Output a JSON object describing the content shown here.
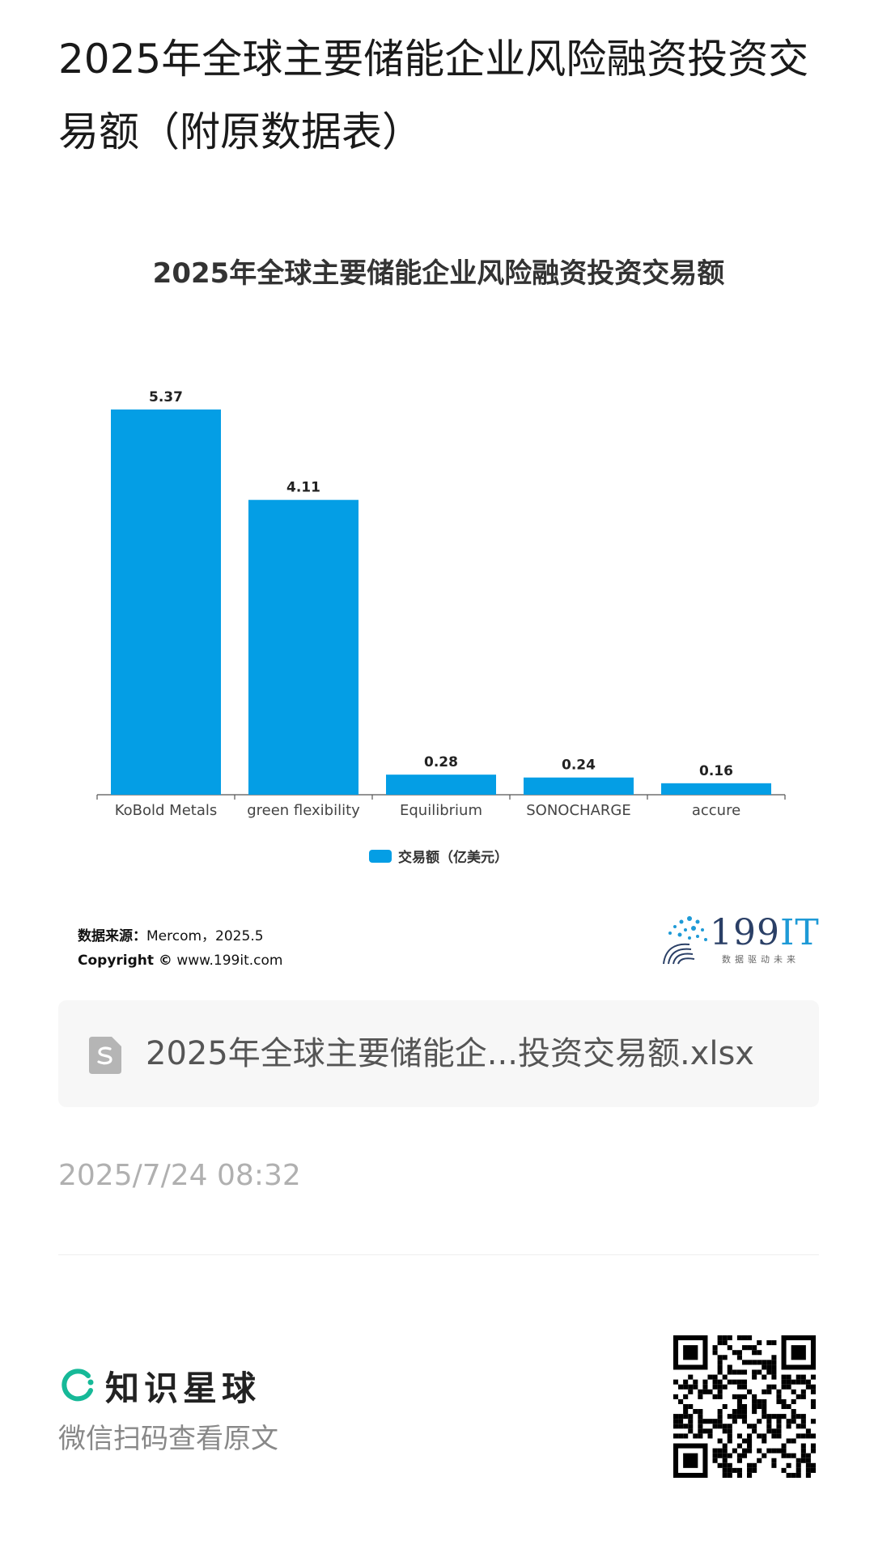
{
  "page": {
    "title": "2025年全球主要储能企业风险融资投资交易额（附原数据表）",
    "timestamp": "2025/7/24 08:32"
  },
  "chart_data": {
    "type": "bar",
    "title": "2025年全球主要储能企业风险融资投资交易额",
    "categories": [
      "KoBold Metals",
      "green flexibility",
      "Equilibrium",
      "SONOCHARGE",
      "accure"
    ],
    "series": [
      {
        "name": "交易额（亿美元）",
        "values": [
          5.37,
          4.11,
          0.28,
          0.24,
          0.16
        ],
        "color": "#049ee5"
      }
    ],
    "value_labels": [
      "5.37",
      "4.11",
      "0.28",
      "0.24",
      "0.16"
    ],
    "ylim": [
      0,
      5.37
    ],
    "legend_position": "bottom",
    "grid": false
  },
  "source": {
    "label": "数据来源：",
    "value": "Mercom，2025.5",
    "copyright_label": "Copyright ©",
    "copyright_value": "www.199it.com"
  },
  "logo": {
    "text": "199",
    "text_accent": "IT",
    "tagline": "数据驱动未来"
  },
  "file": {
    "name": "2025年全球主要储能企...投资交易额.xlsx",
    "icon": "spreadsheet-file-icon"
  },
  "footer": {
    "brand_name": "知识星球",
    "scan_hint": "微信扫码查看原文",
    "qr_icon": "qr-code-icon"
  }
}
